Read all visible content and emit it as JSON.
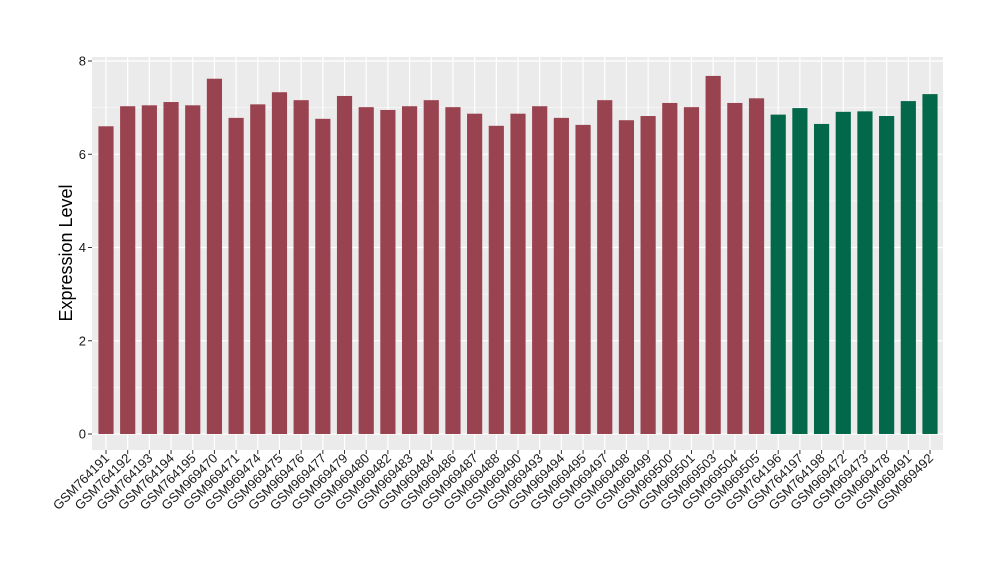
{
  "chart_data": {
    "type": "bar",
    "title": "",
    "xlabel": "",
    "ylabel": "Expression Level",
    "ylim": [
      0,
      8
    ],
    "yticks": [
      0,
      2,
      4,
      6,
      8
    ],
    "grid": true,
    "legend": "none",
    "colors": {
      "group1": "#9a4350",
      "group2": "#03684a",
      "panel": "#ebebeb",
      "grid": "#ffffff"
    },
    "categories": [
      "GSM764191",
      "GSM764192",
      "GSM764193",
      "GSM764194",
      "GSM764195",
      "GSM969470",
      "GSM969471",
      "GSM969474",
      "GSM969475",
      "GSM969476",
      "GSM969477",
      "GSM969479",
      "GSM969480",
      "GSM969482",
      "GSM969483",
      "GSM969484",
      "GSM969486",
      "GSM969487",
      "GSM969488",
      "GSM969490",
      "GSM969493",
      "GSM969494",
      "GSM969495",
      "GSM969497",
      "GSM969498",
      "GSM969499",
      "GSM969500",
      "GSM969501",
      "GSM969503",
      "GSM969504",
      "GSM969505",
      "GSM764196",
      "GSM764197",
      "GSM764198",
      "GSM969472",
      "GSM969473",
      "GSM969478",
      "GSM969491",
      "GSM969492"
    ],
    "values": [
      6.6,
      7.03,
      7.05,
      7.12,
      7.05,
      7.62,
      6.78,
      7.07,
      7.33,
      7.16,
      6.76,
      7.25,
      7.01,
      6.95,
      7.03,
      7.16,
      7.01,
      6.87,
      6.61,
      6.87,
      7.03,
      6.78,
      6.63,
      7.16,
      6.73,
      6.82,
      7.1,
      7.01,
      7.68,
      7.1,
      7.2,
      6.85,
      6.99,
      6.65,
      6.91,
      6.92,
      6.82,
      7.14,
      7.29
    ],
    "groups": [
      1,
      1,
      1,
      1,
      1,
      1,
      1,
      1,
      1,
      1,
      1,
      1,
      1,
      1,
      1,
      1,
      1,
      1,
      1,
      1,
      1,
      1,
      1,
      1,
      1,
      1,
      1,
      1,
      1,
      1,
      1,
      2,
      2,
      2,
      2,
      2,
      2,
      2,
      2
    ]
  }
}
